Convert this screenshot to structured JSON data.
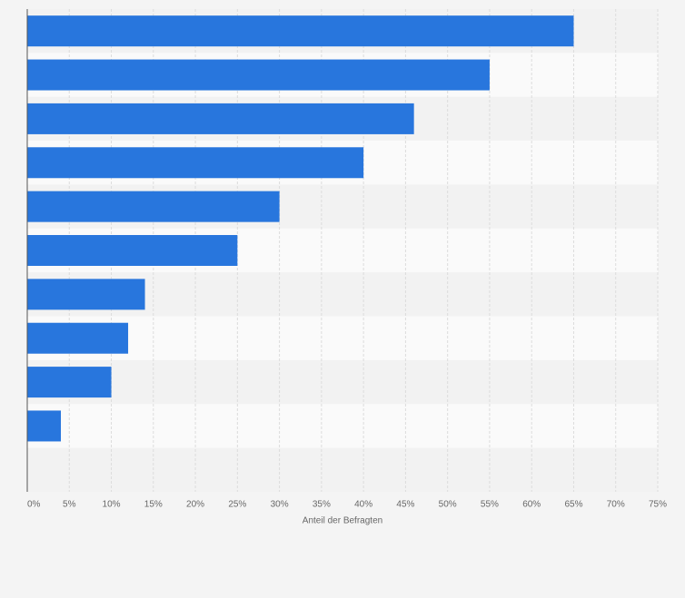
{
  "chart_data": {
    "type": "bar",
    "orientation": "horizontal",
    "categories": [
      null,
      null,
      null,
      null,
      null,
      null,
      null,
      null,
      null,
      null
    ],
    "values": [
      65,
      55,
      46,
      40,
      30,
      25,
      14,
      12,
      10,
      4
    ],
    "color": "#2876dd",
    "xlabel": "Anteil der Befragten",
    "xlim": [
      0,
      75
    ],
    "xticks": [
      {
        "value": 0,
        "label": "0%"
      },
      {
        "value": 5,
        "label": "5%"
      },
      {
        "value": 10,
        "label": "10%"
      },
      {
        "value": 15,
        "label": "15%"
      },
      {
        "value": 20,
        "label": "20%"
      },
      {
        "value": 25,
        "label": "25%"
      },
      {
        "value": 30,
        "label": "30%"
      },
      {
        "value": 35,
        "label": "35%"
      },
      {
        "value": 40,
        "label": "40%"
      },
      {
        "value": 45,
        "label": "45%"
      },
      {
        "value": 50,
        "label": "50%"
      },
      {
        "value": 55,
        "label": "55%"
      },
      {
        "value": 60,
        "label": "60%"
      },
      {
        "value": 65,
        "label": "65%"
      },
      {
        "value": 70,
        "label": "70%"
      },
      {
        "value": 75,
        "label": "75%"
      }
    ],
    "grid": true
  }
}
